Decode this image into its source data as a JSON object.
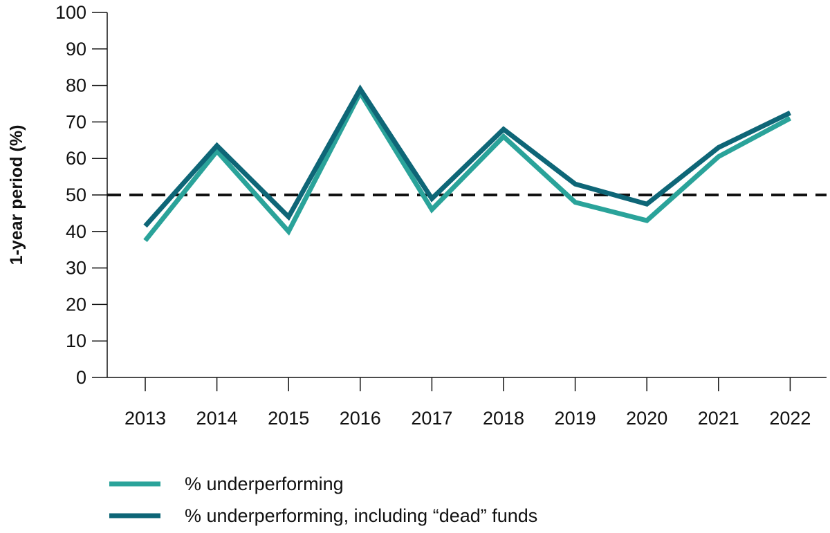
{
  "chart_data": {
    "type": "line",
    "title": "",
    "xlabel": "",
    "ylabel": "1-year period (%)",
    "ylim": [
      0,
      100
    ],
    "yticks": [
      0,
      10,
      20,
      30,
      40,
      50,
      60,
      70,
      80,
      90,
      100
    ],
    "categories": [
      "2013",
      "2014",
      "2015",
      "2016",
      "2017",
      "2018",
      "2019",
      "2020",
      "2021",
      "2022"
    ],
    "reference_line": {
      "y": 50,
      "style": "dashed",
      "color": "#111111"
    },
    "grid": false,
    "legend_position": "bottom-left",
    "series": [
      {
        "name": "% underperforming",
        "color": "#2aa39a",
        "values": [
          37.5,
          62,
          40,
          78,
          46,
          66,
          48,
          43,
          60.5,
          71
        ]
      },
      {
        "name": "% underperforming, including “dead” funds",
        "color": "#0e6677",
        "values": [
          41.5,
          63.5,
          44,
          79,
          49,
          68,
          53,
          47.5,
          63,
          72.5
        ]
      }
    ]
  }
}
